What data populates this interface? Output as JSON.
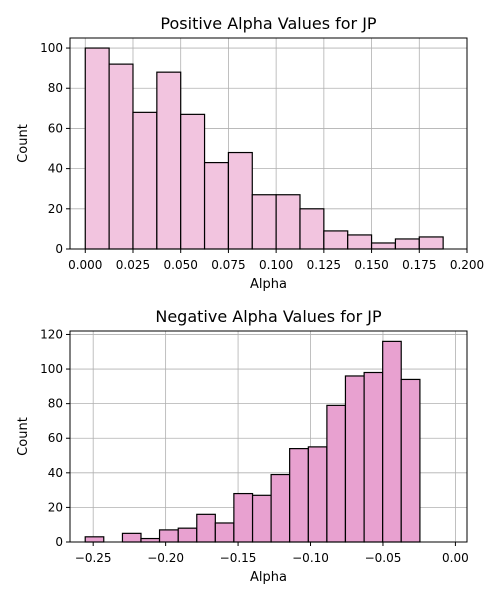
{
  "chart_data": [
    {
      "type": "bar",
      "title": "Positive Alpha Values for JP",
      "xlabel": "Alpha",
      "ylabel": "Count",
      "bar_color": "#f2c4df",
      "grid": true,
      "xlim": [
        -0.008,
        0.2
      ],
      "ylim": [
        0,
        105
      ],
      "xticks": [
        0.0,
        0.025,
        0.05,
        0.075,
        0.1,
        0.125,
        0.15,
        0.175,
        0.2
      ],
      "xtick_labels": [
        "0.000",
        "0.025",
        "0.050",
        "0.075",
        "0.100",
        "0.125",
        "0.150",
        "0.175",
        "0.200"
      ],
      "yticks": [
        0,
        20,
        40,
        60,
        80,
        100
      ],
      "ytick_labels": [
        "0",
        "20",
        "40",
        "60",
        "80",
        "100"
      ],
      "bin_edges": [
        0.0,
        0.0125,
        0.025,
        0.0375,
        0.05,
        0.0625,
        0.075,
        0.0875,
        0.1,
        0.1125,
        0.125,
        0.1375,
        0.15,
        0.1625,
        0.175,
        0.1875
      ],
      "values": [
        100,
        92,
        68,
        88,
        67,
        43,
        48,
        27,
        27,
        20,
        9,
        7,
        3,
        5,
        6
      ]
    },
    {
      "type": "bar",
      "title": "Negative Alpha Values for JP",
      "xlabel": "Alpha",
      "ylabel": "Count",
      "bar_color": "#e8a1d0",
      "grid": true,
      "xlim": [
        -0.266,
        0.008
      ],
      "ylim": [
        0,
        122
      ],
      "xticks": [
        -0.25,
        -0.2,
        -0.15,
        -0.1,
        -0.05,
        0.0
      ],
      "xtick_labels": [
        "−0.25",
        "−0.20",
        "−0.15",
        "−0.10",
        "−0.05",
        "0.00"
      ],
      "yticks": [
        0,
        20,
        40,
        60,
        80,
        100,
        120
      ],
      "ytick_labels": [
        "0",
        "20",
        "40",
        "60",
        "80",
        "100",
        "120"
      ],
      "bin_edges": [
        -0.2555,
        -0.2427,
        -0.2298,
        -0.217,
        -0.2042,
        -0.1913,
        -0.1785,
        -0.1657,
        -0.1529,
        -0.14,
        -0.1272,
        -0.1144,
        -0.1015,
        -0.0887,
        -0.0759,
        -0.063,
        -0.0502,
        -0.0374,
        -0.0245,
        -0.0117,
        0.0
      ],
      "values": [
        3,
        0,
        5,
        2,
        7,
        8,
        16,
        11,
        28,
        27,
        39,
        54,
        55,
        79,
        96,
        98,
        116,
        94,
        0,
        0
      ]
    }
  ]
}
